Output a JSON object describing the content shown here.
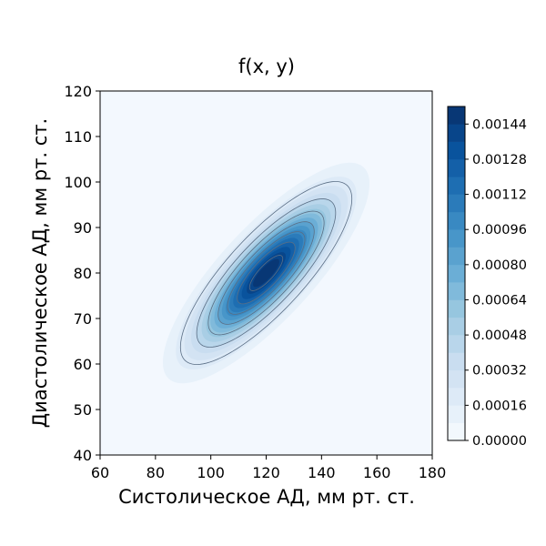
{
  "chart_data": {
    "type": "contour",
    "title": "f(x, y)",
    "xlabel": "Систолическое АД, мм рт. ст.",
    "ylabel": "Диастолическое АД, мм рт. ст.",
    "xlim": [
      60,
      180
    ],
    "ylim": [
      40,
      120
    ],
    "xticks": [
      "60",
      "80",
      "100",
      "120",
      "140",
      "160",
      "180"
    ],
    "yticks": [
      "40",
      "50",
      "60",
      "70",
      "80",
      "90",
      "100",
      "110",
      "120"
    ],
    "colormap": "Blues",
    "density": {
      "mean_x": 120,
      "mean_y": 80,
      "sd_x": 15.4,
      "sd_y": 10,
      "correlation": 0.81,
      "peak": 0.00151
    },
    "filled_levels": [
      0,
      8e-05,
      0.00016,
      0.00024,
      0.00032,
      0.0004,
      0.00048,
      0.00056,
      0.00064,
      0.00072,
      0.0008,
      0.00088,
      0.00096,
      0.00104,
      0.00112,
      0.0012,
      0.00128,
      0.00136,
      0.00144,
      0.00152
    ],
    "line_levels": [
      0.0002,
      0.0004,
      0.0006,
      0.0008,
      0.001,
      0.0012,
      0.0014
    ],
    "colorbar": {
      "ticks": [
        "0.00000",
        "0.00016",
        "0.00032",
        "0.00048",
        "0.00064",
        "0.00080",
        "0.00096",
        "0.00112",
        "0.00128",
        "0.00144"
      ],
      "tick_values": [
        0,
        0.00016,
        0.00032,
        0.00048,
        0.00064,
        0.0008,
        0.00096,
        0.00112,
        0.00128,
        0.00144
      ]
    },
    "background_color": "#f3f8fe",
    "line_color": "#5a6e85"
  }
}
